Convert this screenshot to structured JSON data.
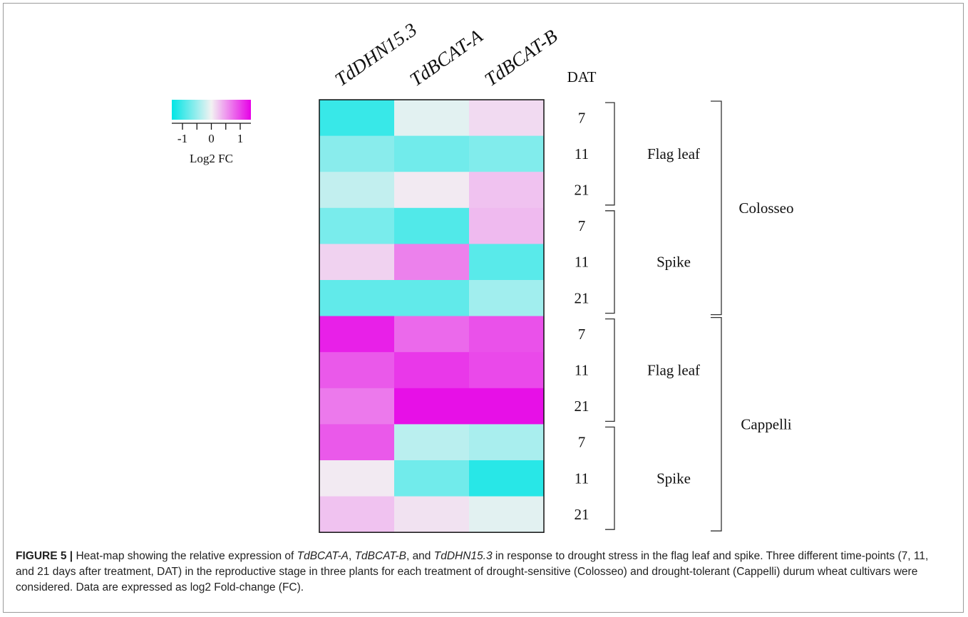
{
  "chart_data": {
    "type": "heatmap",
    "columns": [
      "TdDHN15.3",
      "TdBCAT-A",
      "TdBCAT-B"
    ],
    "column_label_style": "italic",
    "rows": [
      {
        "dat": "7",
        "tissue": "Flag leaf",
        "cultivar": "Colosseo"
      },
      {
        "dat": "11",
        "tissue": "Flag leaf",
        "cultivar": "Colosseo"
      },
      {
        "dat": "21",
        "tissue": "Flag leaf",
        "cultivar": "Colosseo"
      },
      {
        "dat": "7",
        "tissue": "Spike",
        "cultivar": "Colosseo"
      },
      {
        "dat": "11",
        "tissue": "Spike",
        "cultivar": "Colosseo"
      },
      {
        "dat": "21",
        "tissue": "Spike",
        "cultivar": "Colosseo"
      },
      {
        "dat": "7",
        "tissue": "Flag leaf",
        "cultivar": "Cappelli"
      },
      {
        "dat": "11",
        "tissue": "Flag leaf",
        "cultivar": "Cappelli"
      },
      {
        "dat": "21",
        "tissue": "Flag leaf",
        "cultivar": "Cappelli"
      },
      {
        "dat": "7",
        "tissue": "Spike",
        "cultivar": "Cappelli"
      },
      {
        "dat": "11",
        "tissue": "Spike",
        "cultivar": "Cappelli"
      },
      {
        "dat": "21",
        "tissue": "Spike",
        "cultivar": "Cappelli"
      }
    ],
    "values": [
      [
        -1.15,
        -0.1,
        0.15
      ],
      [
        -0.65,
        -0.8,
        -0.7
      ],
      [
        -0.3,
        0.05,
        0.3
      ],
      [
        -0.75,
        -1.0,
        0.35
      ],
      [
        0.2,
        0.7,
        -0.95
      ],
      [
        -0.9,
        -0.9,
        -0.5
      ],
      [
        1.3,
        0.85,
        1.0
      ],
      [
        0.95,
        1.15,
        1.05
      ],
      [
        0.75,
        1.4,
        1.4
      ],
      [
        0.95,
        -0.35,
        -0.45
      ],
      [
        0.05,
        -0.8,
        -1.25
      ],
      [
        0.3,
        0.1,
        -0.1
      ]
    ],
    "row_header": "DAT",
    "tissue_groups": [
      {
        "label": "Flag leaf",
        "start": 0,
        "end": 2
      },
      {
        "label": "Spike",
        "start": 3,
        "end": 5
      },
      {
        "label": "Flag leaf",
        "start": 6,
        "end": 8
      },
      {
        "label": "Spike",
        "start": 9,
        "end": 11
      }
    ],
    "cultivar_groups": [
      {
        "label": "Colosseo",
        "start": 0,
        "end": 5
      },
      {
        "label": "Cappelli",
        "start": 6,
        "end": 11
      }
    ],
    "color_scale": {
      "min": -1.5,
      "max": 1.5,
      "low_color": "#00e5e5",
      "mid_color": "#f2f2f2",
      "high_color": "#e600e6",
      "ticks": [
        "-1",
        "0",
        "1"
      ],
      "label": "Log2 FC"
    }
  },
  "caption": {
    "label": "FIGURE 5 |",
    "parts": [
      {
        "t": " Heat-map showing the relative expression of "
      },
      {
        "t": "TdBCAT-A",
        "i": true
      },
      {
        "t": ", "
      },
      {
        "t": "TdBCAT-B",
        "i": true
      },
      {
        "t": ", and "
      },
      {
        "t": "TdDHN15.3",
        "i": true
      },
      {
        "t": " in response to drought stress in the flag leaf and spike. Three different time-points (7, 11, and 21 days after treatment, DAT) in the reproductive stage in three plants for each treatment of drought-sensitive (Colosseo) and drought-tolerant (Cappelli) durum wheat cultivars were considered. Data are expressed as log2 Fold-change (FC)."
      }
    ]
  }
}
